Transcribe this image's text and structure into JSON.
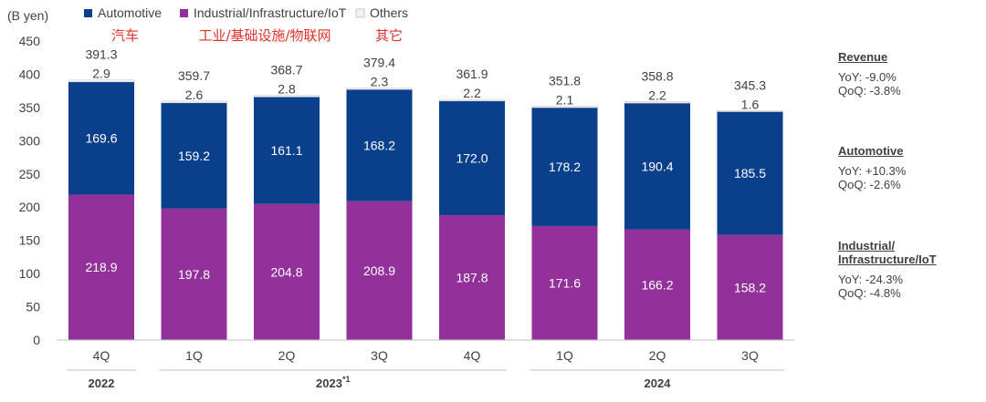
{
  "chart_data": {
    "type": "bar",
    "stacked": true,
    "ylabel": "(B yen)",
    "ylim": [
      0,
      450
    ],
    "yticks": [
      0,
      50,
      100,
      150,
      200,
      250,
      300,
      350,
      400,
      450
    ],
    "categories": [
      "4Q",
      "1Q",
      "2Q",
      "3Q",
      "4Q",
      "1Q",
      "2Q",
      "3Q"
    ],
    "groups": [
      {
        "label": "2022",
        "superscript": "",
        "range": [
          0,
          0
        ]
      },
      {
        "label": "2023",
        "superscript": "*1",
        "range": [
          1,
          4
        ]
      },
      {
        "label": "2024",
        "superscript": "",
        "range": [
          5,
          7
        ]
      }
    ],
    "series": [
      {
        "name": "Industrial/Infrastructure/IoT",
        "name_cn": "工业/基础设施/物联网",
        "color": "#93319a",
        "values": [
          218.9,
          197.8,
          204.8,
          208.9,
          187.8,
          171.6,
          166.2,
          158.2
        ]
      },
      {
        "name": "Automotive",
        "name_cn": "汽车",
        "color": "#0a3f8c",
        "values": [
          169.6,
          159.2,
          161.1,
          168.2,
          172.0,
          178.2,
          190.4,
          185.5
        ]
      },
      {
        "name": "Others",
        "name_cn": "其它",
        "color": "#f2f2f2",
        "values": [
          2.9,
          2.6,
          2.8,
          2.3,
          2.2,
          2.1,
          2.2,
          1.6
        ]
      }
    ],
    "totals": [
      391.3,
      359.7,
      368.7,
      379.4,
      361.9,
      351.8,
      358.8,
      345.3
    ],
    "legend_position": "top"
  },
  "sidebar": [
    {
      "title": "Revenue",
      "lines": [
        "YoY: -9.0%",
        "QoQ: -3.8%"
      ]
    },
    {
      "title": "Automotive",
      "lines": [
        "YoY: +10.3%",
        "QoQ: -2.6%"
      ]
    },
    {
      "title": "Industrial/\nInfrastructure/IoT",
      "lines": [
        "YoY:  -24.3%",
        "QoQ:  -4.8%"
      ]
    }
  ]
}
